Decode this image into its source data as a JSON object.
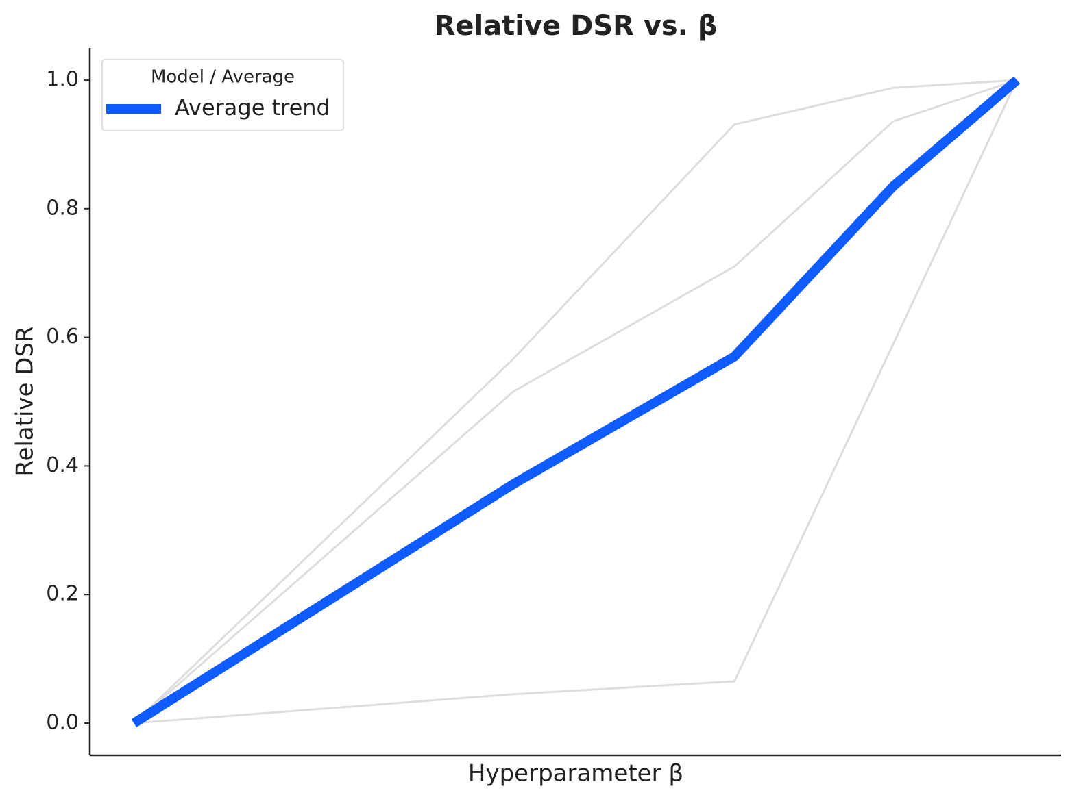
{
  "chart_data": {
    "type": "line",
    "title": "Relative DSR vs. β",
    "xlabel": "Hyperparameter β",
    "ylabel": "Relative DSR",
    "x": [
      0,
      0.43,
      0.68,
      0.86,
      1
    ],
    "series": [
      {
        "color": "#dddddd",
        "values": [
          0,
          0.567,
          0.931,
          0.988,
          1.0
        ]
      },
      {
        "color": "#dddddd",
        "values": [
          0,
          0.516,
          0.71,
          0.936,
          1.0
        ]
      },
      {
        "color": "#dddddd",
        "values": [
          0,
          0.045,
          0.065,
          0.59,
          1.0
        ]
      },
      {
        "name": "Average trend",
        "color": "#0f5bff",
        "values": [
          0,
          0.372,
          0.57,
          0.835,
          1.0
        ]
      }
    ],
    "legend_title": "Model / Average",
    "legend": "upper left",
    "xlim": [
      -0.05,
      1.05
    ],
    "ylim": [
      -0.05,
      1.05
    ],
    "yticks": [
      {
        "value": 0,
        "label": "0.0"
      },
      0.2,
      0.4,
      0.6,
      0.8,
      {
        "value": 1,
        "label": "1.0"
      }
    ],
    "grid": false
  }
}
